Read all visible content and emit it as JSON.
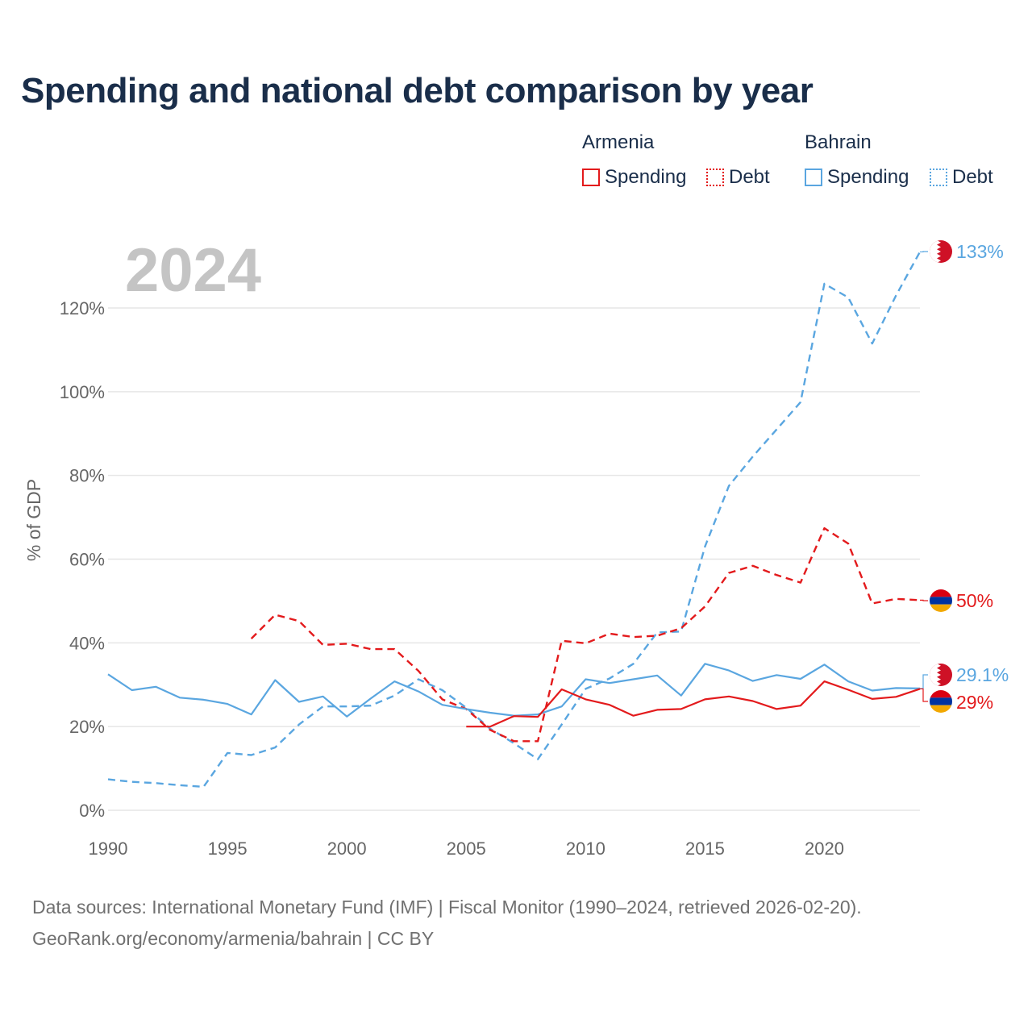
{
  "title": "Spending and national debt comparison by year",
  "watermark_year": "2024",
  "legend": {
    "groups": [
      {
        "name": "Armenia",
        "color": "#e31a1c",
        "items": [
          {
            "label": "Spending",
            "style": "solid"
          },
          {
            "label": "Debt",
            "style": "dotted"
          }
        ]
      },
      {
        "name": "Bahrain",
        "color": "#5aa6e0",
        "items": [
          {
            "label": "Spending",
            "style": "solid"
          },
          {
            "label": "Debt",
            "style": "dotted"
          }
        ]
      }
    ]
  },
  "footer": {
    "line1": "Data sources: International Monetary Fund (IMF) | Fiscal Monitor (1990–2024, retrieved 2026-02-20).",
    "line2": "GeoRank.org/economy/armenia/bahrain | CC BY"
  },
  "chart_data": {
    "type": "line",
    "title": "Spending and national debt comparison by year",
    "xlabel": "",
    "ylabel": "% of GDP",
    "xlim": [
      1990,
      2024
    ],
    "ylim": [
      0,
      130
    ],
    "xticks": [
      1990,
      1995,
      2000,
      2005,
      2010,
      2015,
      2020
    ],
    "xtick_labels": [
      "1990",
      "1995",
      "2000",
      "2005",
      "2010",
      "2015",
      "2020"
    ],
    "yticks": [
      0,
      20,
      40,
      60,
      80,
      100,
      120
    ],
    "ytick_labels": [
      "0%",
      "20%",
      "40%",
      "60%",
      "80%",
      "100%",
      "120%"
    ],
    "grid": true,
    "legend_position": "top-right",
    "series": [
      {
        "name": "Bahrain Debt",
        "country": "Bahrain",
        "measure": "Debt",
        "color": "#5aa6e0",
        "dash": "dashed",
        "x": [
          1990,
          1991,
          1992,
          1993,
          1994,
          1995,
          1996,
          1997,
          1998,
          1999,
          2000,
          2001,
          2002,
          2003,
          2004,
          2005,
          2006,
          2007,
          2008,
          2009,
          2010,
          2011,
          2012,
          2013,
          2014,
          2015,
          2016,
          2017,
          2018,
          2019,
          2020,
          2021,
          2022,
          2023,
          2024
        ],
        "values": [
          7.4,
          6.8,
          6.5,
          6.0,
          5.6,
          13.7,
          13.2,
          15.0,
          20.5,
          24.8,
          24.8,
          25.0,
          27.4,
          31.3,
          28.7,
          24.5,
          19.5,
          16.0,
          12.2,
          20.5,
          29.0,
          31.5,
          35.0,
          42.5,
          42.7,
          63.0,
          77.5,
          84.5,
          91.0,
          97.5,
          125.8,
          122.5,
          111.5,
          123.0,
          133.4
        ],
        "end_label": "133%"
      },
      {
        "name": "Armenia Debt",
        "country": "Armenia",
        "measure": "Debt",
        "color": "#e31a1c",
        "dash": "dashed",
        "x": [
          1996,
          1997,
          1998,
          1999,
          2000,
          2001,
          2002,
          2003,
          2004,
          2005,
          2006,
          2007,
          2008,
          2009,
          2010,
          2011,
          2012,
          2013,
          2014,
          2015,
          2016,
          2017,
          2018,
          2019,
          2020,
          2021,
          2022,
          2023,
          2024
        ],
        "values": [
          41.0,
          46.7,
          45.2,
          39.5,
          39.8,
          38.5,
          38.5,
          33.3,
          26.5,
          24.2,
          19.2,
          16.5,
          16.5,
          40.5,
          39.9,
          42.2,
          41.4,
          41.7,
          43.5,
          48.7,
          56.7,
          58.4,
          56.2,
          54.4,
          67.4,
          63.7,
          49.4,
          50.5,
          50.2
        ],
        "end_label": "50%"
      },
      {
        "name": "Bahrain Spending",
        "country": "Bahrain",
        "measure": "Spending",
        "color": "#5aa6e0",
        "dash": "solid",
        "x": [
          1990,
          1991,
          1992,
          1993,
          1994,
          1995,
          1996,
          1997,
          1998,
          1999,
          2000,
          2001,
          2002,
          2003,
          2004,
          2005,
          2006,
          2007,
          2008,
          2009,
          2010,
          2011,
          2012,
          2013,
          2014,
          2015,
          2016,
          2017,
          2018,
          2019,
          2020,
          2021,
          2022,
          2023,
          2024
        ],
        "values": [
          32.5,
          28.7,
          29.5,
          26.9,
          26.4,
          25.4,
          22.9,
          31.1,
          25.9,
          27.2,
          22.4,
          26.7,
          30.8,
          28.4,
          25.2,
          24.2,
          23.3,
          22.6,
          22.9,
          24.8,
          31.3,
          30.4,
          31.3,
          32.2,
          27.4,
          35.0,
          33.4,
          30.9,
          32.3,
          31.4,
          34.8,
          30.8,
          28.6,
          29.2,
          29.1
        ],
        "end_label": "29.1%"
      },
      {
        "name": "Armenia Spending",
        "country": "Armenia",
        "measure": "Spending",
        "color": "#e31a1c",
        "dash": "solid",
        "x": [
          2005,
          2006,
          2007,
          2008,
          2009,
          2010,
          2011,
          2012,
          2013,
          2014,
          2015,
          2016,
          2017,
          2018,
          2019,
          2020,
          2021,
          2022,
          2023,
          2024
        ],
        "values": [
          20.0,
          20.0,
          22.5,
          22.3,
          28.9,
          26.5,
          25.2,
          22.6,
          24.0,
          24.2,
          26.5,
          27.2,
          26.1,
          24.2,
          25.0,
          30.8,
          28.8,
          26.6,
          27.1,
          29.0
        ],
        "end_label": "29%"
      }
    ]
  }
}
